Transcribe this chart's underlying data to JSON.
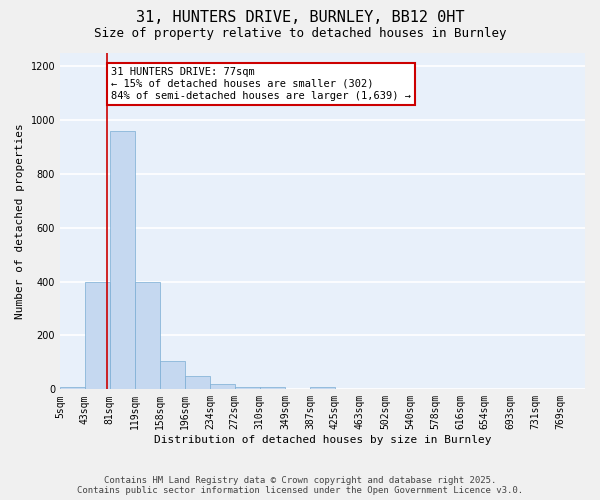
{
  "title1": "31, HUNTERS DRIVE, BURNLEY, BB12 0HT",
  "title2": "Size of property relative to detached houses in Burnley",
  "xlabel": "Distribution of detached houses by size in Burnley",
  "ylabel": "Number of detached properties",
  "bar_color": "#c5d8f0",
  "bar_edge_color": "#7aadd4",
  "background_color": "#e8f0fa",
  "fig_background_color": "#f0f0f0",
  "grid_color": "#ffffff",
  "bin_edges": [
    5,
    43,
    81,
    119,
    158,
    196,
    234,
    272,
    310,
    349,
    387,
    425,
    463,
    502,
    540,
    578,
    616,
    654,
    693,
    731,
    769
  ],
  "bar_heights": [
    10,
    400,
    960,
    400,
    105,
    50,
    20,
    10,
    10,
    0,
    10,
    0,
    0,
    0,
    0,
    0,
    0,
    0,
    0,
    0
  ],
  "property_size": 77,
  "red_line_color": "#cc0000",
  "annotation_line1": "31 HUNTERS DRIVE: 77sqm",
  "annotation_line2": "← 15% of detached houses are smaller (302)",
  "annotation_line3": "84% of semi-detached houses are larger (1,639) →",
  "annotation_box_color": "#ffffff",
  "annotation_border_color": "#cc0000",
  "ylim": [
    0,
    1250
  ],
  "yticks": [
    0,
    200,
    400,
    600,
    800,
    1000,
    1200
  ],
  "footnote1": "Contains HM Land Registry data © Crown copyright and database right 2025.",
  "footnote2": "Contains public sector information licensed under the Open Government Licence v3.0.",
  "title1_fontsize": 11,
  "title2_fontsize": 9,
  "tick_label_fontsize": 7,
  "ylabel_fontsize": 8,
  "xlabel_fontsize": 8,
  "annotation_fontsize": 7.5,
  "footnote_fontsize": 6.5
}
